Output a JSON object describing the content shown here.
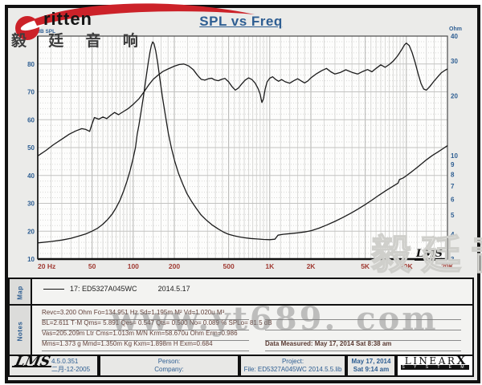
{
  "header": {
    "title": "SPL vs Freq",
    "brand_text": "ritten",
    "brand_cn": "毅 廷 音 响"
  },
  "chart_data": {
    "type": "line",
    "title": "SPL vs Freq",
    "x_axis": {
      "scale": "log",
      "range": [
        20,
        20000
      ],
      "unit": "Hz"
    },
    "y_left": {
      "label": "dB SPL",
      "scale": "linear",
      "range": [
        10,
        90
      ],
      "ticks": [
        90,
        80,
        70,
        60,
        50,
        40,
        30,
        20,
        10
      ]
    },
    "y_right": {
      "label": "Ohm",
      "scale": "log",
      "range": [
        3,
        40
      ],
      "ticks": [
        40,
        30,
        20,
        10,
        9,
        8,
        7,
        6,
        5,
        4,
        3
      ]
    },
    "x_ticks": [
      {
        "v": 20,
        "label": "20 Hz"
      },
      {
        "v": 50,
        "label": "50"
      },
      {
        "v": 100,
        "label": "100"
      },
      {
        "v": 200,
        "label": "200"
      },
      {
        "v": 500,
        "label": "500"
      },
      {
        "v": 1000,
        "label": "1K"
      },
      {
        "v": 2000,
        "label": "2K"
      },
      {
        "v": 5000,
        "label": "5K"
      },
      {
        "v": 10000,
        "label": "10K"
      },
      {
        "v": 20000,
        "label": "20K"
      }
    ],
    "grid": {
      "major_db_step": 10,
      "minor_db_step": 2,
      "mantissas": [
        1,
        1.2,
        1.4,
        1.6,
        1.8,
        2,
        2.5,
        3,
        3.5,
        4,
        4.5,
        5,
        5.5,
        6,
        6.5,
        7,
        7.5,
        8,
        8.5,
        9,
        9.5
      ]
    },
    "series": [
      {
        "name": "17: ED5327A045WC  SPL",
        "axis": "left",
        "points": [
          [
            20,
            47
          ],
          [
            23,
            49
          ],
          [
            26,
            51
          ],
          [
            30,
            53
          ],
          [
            34,
            54.8
          ],
          [
            38,
            56
          ],
          [
            42,
            56.8
          ],
          [
            45,
            56.5
          ],
          [
            48,
            55.8
          ],
          [
            50,
            58.5
          ],
          [
            52,
            60.8
          ],
          [
            56,
            60.2
          ],
          [
            60,
            61
          ],
          [
            64,
            60.4
          ],
          [
            68,
            61.5
          ],
          [
            73,
            62.6
          ],
          [
            78,
            61.8
          ],
          [
            84,
            62.8
          ],
          [
            92,
            64
          ],
          [
            100,
            65.5
          ],
          [
            110,
            67.5
          ],
          [
            120,
            70
          ],
          [
            130,
            72.5
          ],
          [
            140,
            74.5
          ],
          [
            152,
            76
          ],
          [
            165,
            77.3
          ],
          [
            180,
            78.2
          ],
          [
            200,
            79.2
          ],
          [
            218,
            79.8
          ],
          [
            235,
            80
          ],
          [
            255,
            79.3
          ],
          [
            275,
            78
          ],
          [
            295,
            76
          ],
          [
            315,
            74.5
          ],
          [
            335,
            74.2
          ],
          [
            355,
            74.7
          ],
          [
            375,
            74.9
          ],
          [
            395,
            74.3
          ],
          [
            420,
            74
          ],
          [
            445,
            74.5
          ],
          [
            470,
            74.8
          ],
          [
            500,
            73.6
          ],
          [
            530,
            71.8
          ],
          [
            560,
            70.6
          ],
          [
            590,
            71.4
          ],
          [
            625,
            72.9
          ],
          [
            660,
            74.2
          ],
          [
            700,
            75
          ],
          [
            740,
            74.4
          ],
          [
            780,
            73.2
          ],
          [
            820,
            71.2
          ],
          [
            850,
            69.2
          ],
          [
            875,
            66.2
          ],
          [
            900,
            67.5
          ],
          [
            925,
            71
          ],
          [
            955,
            73.5
          ],
          [
            1000,
            74.9
          ],
          [
            1050,
            75.4
          ],
          [
            1100,
            74.5
          ],
          [
            1160,
            73.8
          ],
          [
            1220,
            74.4
          ],
          [
            1300,
            73.6
          ],
          [
            1400,
            73.1
          ],
          [
            1500,
            74
          ],
          [
            1600,
            74.7
          ],
          [
            1700,
            73.9
          ],
          [
            1800,
            73.2
          ],
          [
            1900,
            73.9
          ],
          [
            2000,
            75
          ],
          [
            2200,
            76.5
          ],
          [
            2400,
            77.6
          ],
          [
            2600,
            78.4
          ],
          [
            2800,
            77.2
          ],
          [
            3000,
            76.4
          ],
          [
            3300,
            77
          ],
          [
            3600,
            77.9
          ],
          [
            4000,
            77
          ],
          [
            4400,
            76.4
          ],
          [
            4800,
            77.3
          ],
          [
            5200,
            78
          ],
          [
            5600,
            77.2
          ],
          [
            6000,
            78.4
          ],
          [
            6500,
            79.7
          ],
          [
            7000,
            78.8
          ],
          [
            7500,
            79.8
          ],
          [
            8000,
            81
          ],
          [
            8600,
            82.8
          ],
          [
            9200,
            85
          ],
          [
            9700,
            86.9
          ],
          [
            10000,
            87.5
          ],
          [
            10500,
            86.6
          ],
          [
            11000,
            84.2
          ],
          [
            11600,
            80.5
          ],
          [
            12200,
            76.5
          ],
          [
            12800,
            73
          ],
          [
            13400,
            71
          ],
          [
            14000,
            70.6
          ],
          [
            14800,
            71.8
          ],
          [
            15800,
            73.6
          ],
          [
            17000,
            75.4
          ],
          [
            18000,
            76.8
          ],
          [
            19000,
            77.6
          ],
          [
            20000,
            78.2
          ]
        ]
      },
      {
        "name": "17: ED5327A045WC  Impedance",
        "axis": "right",
        "points": [
          [
            20,
            3.62
          ],
          [
            25,
            3.68
          ],
          [
            30,
            3.74
          ],
          [
            35,
            3.82
          ],
          [
            40,
            3.92
          ],
          [
            45,
            4.02
          ],
          [
            50,
            4.15
          ],
          [
            55,
            4.3
          ],
          [
            60,
            4.5
          ],
          [
            65,
            4.75
          ],
          [
            70,
            5.05
          ],
          [
            75,
            5.45
          ],
          [
            80,
            5.95
          ],
          [
            85,
            6.6
          ],
          [
            90,
            7.4
          ],
          [
            95,
            8.4
          ],
          [
            100,
            9.7
          ],
          [
            104,
            11
          ],
          [
            107,
            12.8
          ],
          [
            110,
            14.2
          ],
          [
            114,
            16.5
          ],
          [
            119,
            20
          ],
          [
            124,
            24.5
          ],
          [
            129,
            29.5
          ],
          [
            133,
            33.5
          ],
          [
            136,
            36
          ],
          [
            139,
            37.4
          ],
          [
            142,
            36.6
          ],
          [
            146,
            33.8
          ],
          [
            151,
            29.3
          ],
          [
            157,
            24.2
          ],
          [
            164,
            19.6
          ],
          [
            172,
            15.9
          ],
          [
            181,
            12.9
          ],
          [
            191,
            10.8
          ],
          [
            202,
            9.3
          ],
          [
            215,
            8.1
          ],
          [
            230,
            7.2
          ],
          [
            248,
            6.4
          ],
          [
            268,
            5.85
          ],
          [
            290,
            5.4
          ],
          [
            315,
            5
          ],
          [
            345,
            4.7
          ],
          [
            380,
            4.45
          ],
          [
            420,
            4.25
          ],
          [
            460,
            4.1
          ],
          [
            500,
            4
          ],
          [
            550,
            3.93
          ],
          [
            600,
            3.88
          ],
          [
            660,
            3.84
          ],
          [
            720,
            3.81
          ],
          [
            800,
            3.79
          ],
          [
            900,
            3.77
          ],
          [
            1000,
            3.76
          ],
          [
            1090,
            3.78
          ],
          [
            1150,
            3.96
          ],
          [
            1250,
            4
          ],
          [
            1400,
            4.03
          ],
          [
            1600,
            4.07
          ],
          [
            1800,
            4.11
          ],
          [
            2000,
            4.17
          ],
          [
            2300,
            4.3
          ],
          [
            2600,
            4.45
          ],
          [
            3000,
            4.65
          ],
          [
            3400,
            4.85
          ],
          [
            3900,
            5.1
          ],
          [
            4400,
            5.35
          ],
          [
            5000,
            5.65
          ],
          [
            5600,
            5.95
          ],
          [
            6300,
            6.3
          ],
          [
            7100,
            6.65
          ],
          [
            8000,
            7
          ],
          [
            8700,
            7.25
          ],
          [
            8900,
            7.55
          ],
          [
            9500,
            7.7
          ],
          [
            10000,
            7.9
          ],
          [
            11000,
            8.3
          ],
          [
            12000,
            8.7
          ],
          [
            13000,
            9.1
          ],
          [
            14000,
            9.5
          ],
          [
            15500,
            10
          ],
          [
            17000,
            10.4
          ],
          [
            18500,
            10.8
          ],
          [
            20000,
            11.2
          ]
        ]
      }
    ],
    "plot_logo": "LMS"
  },
  "map": {
    "label": "Map",
    "legend_name": "17: ED5327A045WC",
    "legend_date": "2014.5.17"
  },
  "notes": {
    "label": "Notes",
    "lines": [
      "Revc=3.200 Ohm  Fo=134.951 Hz  Sd=1.195m M²  Vd=1.020u M³",
      "BL=2.611 T·M  Qms= 5.891  Qes= 0.547  Qts= 0.500  No= 0.089 %  SPLo= 81.5 dB",
      "Vas=205.209m Ltr  Cms=1.013m M/N  Krm=58.670u Ohm  Erm=0.986",
      "Mms=1.373 g  Mmd=1.350m Kg  Kxm=1.898m H  Exm=0.684"
    ],
    "data_measured": "Data Measured: May 17, 2014  Sat  8:38 am"
  },
  "footer": {
    "lms_logo": "LMS",
    "version": "4.5.0.351",
    "version_date": "二月-12-2005",
    "person_label": "Person:",
    "company_label": "Company:",
    "project_label": "Project:",
    "file_label": "File: ED5327A045WC 2014.5.5.lib",
    "date": "May 17, 2014",
    "time": "Sat  9:14 am",
    "linearx": "LINEAR",
    "linearx_x": "X",
    "systems": "S Y S T E M S"
  },
  "watermarks": {
    "site": "www.yt689. com",
    "cn": "毅廷音响"
  },
  "colors": {
    "accent_blue": "#2e5e92",
    "tick_red": "#a03a32",
    "curve": "#1b1b1b",
    "brand_red": "#cc2229",
    "grid_major": "#c3c3c1",
    "grid_minor": "#d9d9d7",
    "grid_labeled": "#b3b3b1",
    "plot_bg": "#fdfdfc"
  }
}
